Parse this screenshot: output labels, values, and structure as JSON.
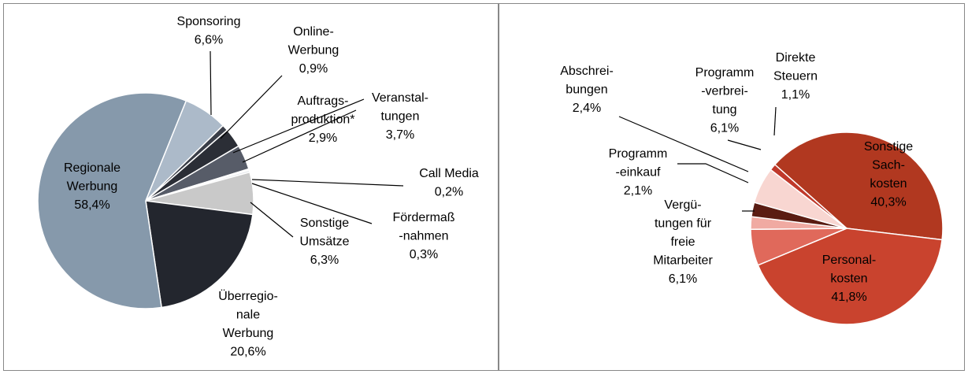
{
  "chart_data": [
    {
      "type": "pie",
      "categories": [
        "Sponsoring",
        "Online-\nWerbung",
        "Auftrags-\nproduktion*",
        "Veranstal-\ntungen",
        "Call Media",
        "Fördermaß\n-nahmen",
        "Sonstige\nUmsätze",
        "Überregio-\nnale\nWerbung",
        "Regionale\nWerbung"
      ],
      "values": [
        6.6,
        0.9,
        2.9,
        3.7,
        0.2,
        0.3,
        6.3,
        20.6,
        58.4
      ],
      "value_labels": [
        "6,6%",
        "0,9%",
        "2,9%",
        "3,7%",
        "0,2%",
        "0,3%",
        "6,3%",
        "20,6%",
        "58,4%"
      ],
      "colors": [
        "#acbac9",
        "#3a3e48",
        "#2b2e36",
        "#575c68",
        "#e8ecf0",
        "#dfe3e8",
        "#c9c9c9",
        "#23262e",
        "#8699ab"
      ]
    },
    {
      "type": "pie",
      "categories": [
        "Sonstige\nSach-\nkosten",
        "Personal-\nkosten",
        "Vergü-\ntungen für\nfreie\nMitarbeiter",
        "Programm\n-einkauf",
        "Abschrei-\nbungen",
        "Programm\n-verbrei-\ntung",
        "Direkte\nSteuern"
      ],
      "values": [
        40.3,
        41.8,
        6.1,
        2.1,
        2.4,
        6.1,
        1.1
      ],
      "value_labels": [
        "40,3%",
        "41,8%",
        "6,1%",
        "2,1%",
        "2,4%",
        "6,1%",
        "1,1%"
      ],
      "colors": [
        "#b13820",
        "#c9432e",
        "#e0695b",
        "#f0aaa2",
        "#5a1c12",
        "#f8d6d1",
        "#c0392b"
      ]
    }
  ]
}
